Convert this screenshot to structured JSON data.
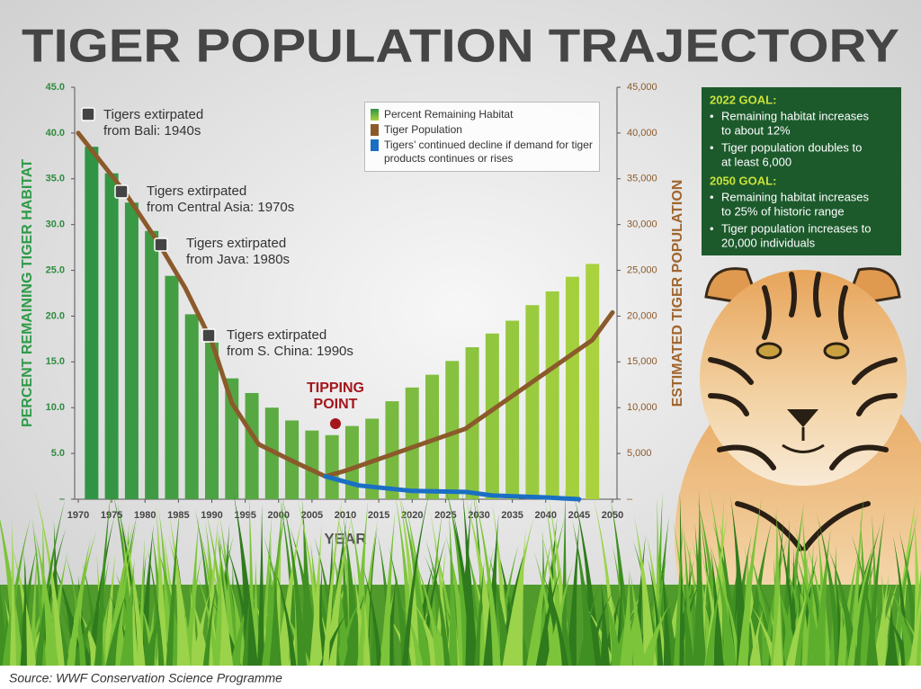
{
  "chart_data": {
    "type": "combo",
    "title": "TIGER POPULATION TRAJECTORY",
    "x_label": "YEAR",
    "y_label": "PERCENT REMAINING TIGER HABITAT",
    "y2_label": "ESTIMATED TIGER POPULATION",
    "xlim": [
      1970,
      2050
    ],
    "xticks": [
      1970,
      1975,
      1980,
      1985,
      1990,
      1995,
      2000,
      2005,
      2010,
      2015,
      2020,
      2025,
      2030,
      2035,
      2040,
      2045,
      2050
    ],
    "ylim": [
      0,
      45
    ],
    "yticks": [
      {
        "value": 0,
        "label": "–"
      },
      {
        "value": 5,
        "label": "5.0"
      },
      {
        "value": 10,
        "label": "10.0"
      },
      {
        "value": 15,
        "label": "15.0"
      },
      {
        "value": 20,
        "label": "20.0"
      },
      {
        "value": 25,
        "label": "25.0"
      },
      {
        "value": 30,
        "label": "30.0"
      },
      {
        "value": 35,
        "label": "35.0"
      },
      {
        "value": 40,
        "label": "40.0"
      },
      {
        "value": 45,
        "label": "45.0"
      }
    ],
    "y2lim": [
      0,
      45000
    ],
    "y2ticks": [
      {
        "value": 0,
        "label": "–"
      },
      {
        "value": 5000,
        "label": "5,000"
      },
      {
        "value": 10000,
        "label": "10,000"
      },
      {
        "value": 15000,
        "label": "15,000"
      },
      {
        "value": 20000,
        "label": "20,000"
      },
      {
        "value": 25000,
        "label": "25,000"
      },
      {
        "value": 30000,
        "label": "30,000"
      },
      {
        "value": 35000,
        "label": "35,000"
      },
      {
        "value": 40000,
        "label": "40,000"
      },
      {
        "value": 45000,
        "label": "45,000"
      }
    ],
    "series": [
      {
        "name": "Percent Remaining Habitat",
        "kind": "bar",
        "color": "#2f9444",
        "color_end": "#a9d23e",
        "x": [
          1972,
          1975,
          1978,
          1981,
          1984,
          1987,
          1990,
          1993,
          1996,
          1999,
          2002,
          2005,
          2008,
          2011,
          2014,
          2017,
          2020,
          2023,
          2026,
          2029,
          2032,
          2035,
          2038,
          2041,
          2044,
          2047
        ],
        "values": [
          38.5,
          35.6,
          32.4,
          29.3,
          24.4,
          20.2,
          17.1,
          13.2,
          11.6,
          10.0,
          8.6,
          7.5,
          7.0,
          8.0,
          8.8,
          10.7,
          12.2,
          13.6,
          15.1,
          16.6,
          18.1,
          19.5,
          21.2,
          22.7,
          24.3,
          25.7
        ]
      },
      {
        "name": "Tiger Population",
        "kind": "line",
        "axis": "y2",
        "color": "#8b5a2b",
        "x": [
          1970,
          1977,
          1982,
          1986,
          1990,
          1993,
          1997,
          2002,
          2007,
          2010,
          2028,
          2047,
          2050
        ],
        "values": [
          40000,
          33500,
          28000,
          23100,
          17200,
          10500,
          6000,
          4200,
          2500,
          3100,
          7700,
          17400,
          20400
        ]
      },
      {
        "name": "Tigers’ continued decline if demand for tiger products continues or rises",
        "kind": "line",
        "axis": "y2",
        "color": "#1a6fc4",
        "x": [
          2007,
          2012,
          2020,
          2028,
          2032,
          2040,
          2045
        ],
        "values": [
          2500,
          1500,
          900,
          800,
          400,
          200,
          0
        ]
      }
    ],
    "annotations": [
      {
        "lines": [
          "Tigers extirpated",
          "from Bali: 1940s"
        ]
      },
      {
        "lines": [
          "Tigers extirpated",
          "from Central Asia: 1970s"
        ]
      },
      {
        "lines": [
          "Tigers extirpated",
          "from Java: 1980s"
        ]
      },
      {
        "lines": [
          "Tigers extirpated",
          "from S. China: 1990s"
        ]
      },
      {
        "lines": [
          "TIPPING",
          "POINT"
        ]
      }
    ]
  },
  "goals": [
    {
      "heading": "2022 GOAL:",
      "items": [
        [
          "Remaining habitat increases",
          "to about 12%"
        ],
        [
          "Tiger population doubles to",
          "at least 6,000"
        ]
      ]
    },
    {
      "heading": "2050 GOAL:",
      "items": [
        [
          "Remaining habitat increases",
          "to 25% of historic range"
        ],
        [
          "Tiger population increases to",
          "20,000 individuals"
        ]
      ]
    }
  ],
  "source": "Source: WWF Conservation Science Programme"
}
